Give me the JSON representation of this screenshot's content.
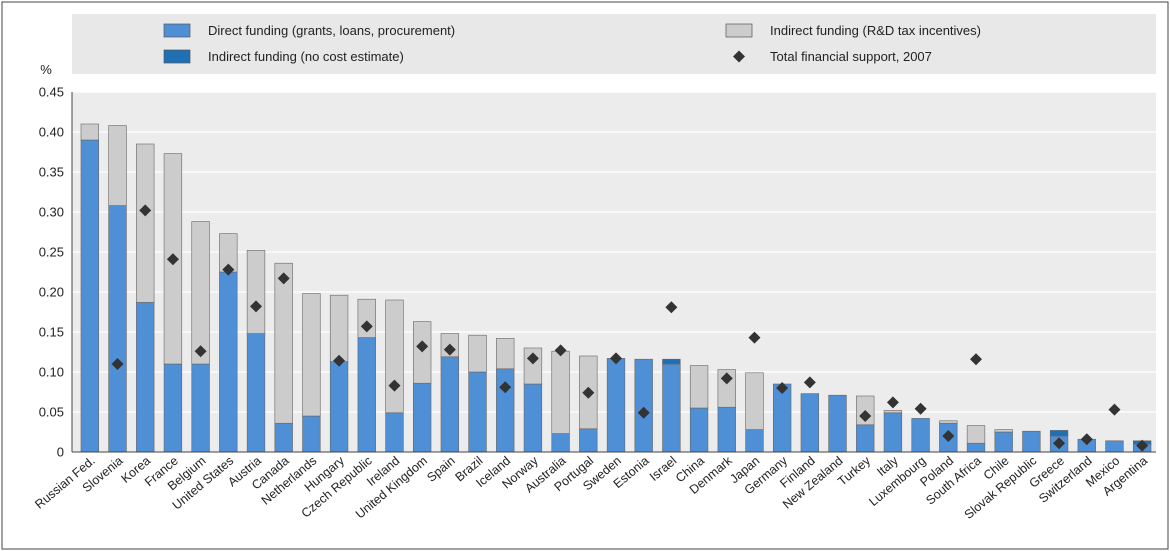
{
  "chart_data": {
    "type": "bar",
    "stacked": true,
    "yunit": "%",
    "ylim": [
      0,
      0.45
    ],
    "yticks": [
      "0",
      "0.05",
      "0.10",
      "0.15",
      "0.20",
      "0.25",
      "0.30",
      "0.35",
      "0.40",
      "0.45"
    ],
    "grid": true,
    "legend_position": "top",
    "categories": [
      "Russian Fed.",
      "Slovenia",
      "Korea",
      "France",
      "Belgium",
      "United States",
      "Austria",
      "Canada",
      "Netherlands",
      "Hungary",
      "Czech Republic",
      "Ireland",
      "United Kingdom",
      "Spain",
      "Brazil",
      "Iceland",
      "Norway",
      "Australia",
      "Portugal",
      "Sweden",
      "Estonia",
      "Israel",
      "China",
      "Denmark",
      "Japan",
      "Germany",
      "Finland",
      "New Zealand",
      "Turkey",
      "Italy",
      "Luxembourg",
      "Poland",
      "South Africa",
      "Chile",
      "Slovak Republic",
      "Greece",
      "Switzerland",
      "Mexico",
      "Argentina"
    ],
    "series": [
      {
        "name": "Direct funding (grants, loans, procurement)",
        "kind": "bar",
        "color": "#4f8fd6",
        "values": [
          0.39,
          0.308,
          0.187,
          0.11,
          0.11,
          0.225,
          0.148,
          0.036,
          0.045,
          0.113,
          0.143,
          0.049,
          0.086,
          0.119,
          0.1,
          0.104,
          0.085,
          0.023,
          0.029,
          0.117,
          0.116,
          0.11,
          0.055,
          0.056,
          0.028,
          0.085,
          0.073,
          0.071,
          0.034,
          0.049,
          0.042,
          0.036,
          0.011,
          0.025,
          0.026,
          0.02,
          0.016,
          0.014,
          0.01
        ]
      },
      {
        "name": "Indirect funding (R&D tax incentives)",
        "kind": "bar",
        "color": "#cccccc",
        "values": [
          0.02,
          0.1,
          0.198,
          0.263,
          0.178,
          0.048,
          0.104,
          0.2,
          0.153,
          0.083,
          0.048,
          0.141,
          0.077,
          0.029,
          0.046,
          0.038,
          0.045,
          0.103,
          0.091,
          0,
          0,
          0,
          0.053,
          0.047,
          0.071,
          0,
          0,
          0,
          0.036,
          0.003,
          0,
          0.003,
          0.022,
          0.003,
          0,
          0,
          0,
          0,
          0
        ]
      },
      {
        "name": "Indirect funding (no cost estimate)",
        "kind": "bar",
        "color": "#1f6fb5",
        "values": [
          0,
          0,
          0,
          0,
          0,
          0,
          0,
          0,
          0,
          0,
          0,
          0,
          0,
          0,
          0,
          0,
          0,
          0,
          0,
          0,
          0,
          0.006,
          0,
          0,
          0,
          0,
          0,
          0,
          0,
          0,
          0,
          0,
          0,
          0,
          0,
          0.007,
          0,
          0,
          0.004
        ]
      },
      {
        "name": "Total financial support, 2007",
        "kind": "marker",
        "color": "#333333",
        "values": [
          null,
          0.11,
          0.302,
          0.241,
          0.126,
          0.228,
          0.182,
          0.217,
          null,
          0.114,
          0.157,
          0.083,
          0.132,
          0.128,
          null,
          0.081,
          0.117,
          0.127,
          0.074,
          0.117,
          0.049,
          0.181,
          null,
          0.092,
          0.143,
          0.08,
          0.087,
          null,
          0.045,
          0.062,
          0.054,
          0.02,
          0.116,
          null,
          null,
          0.011,
          0.016,
          0.053,
          0.008
        ]
      }
    ]
  }
}
